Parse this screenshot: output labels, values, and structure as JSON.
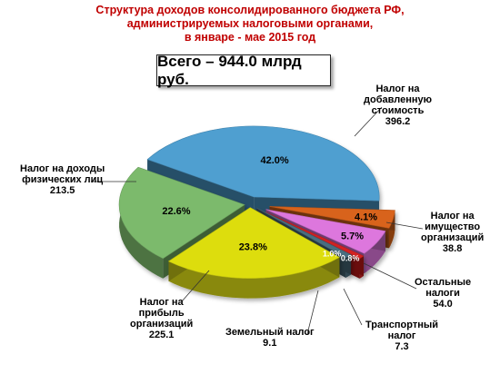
{
  "title_lines": [
    "Структура доходов консолидированного бюджета РФ,",
    "администрируемых налоговыми органами,",
    "в январе - мае 2015 год"
  ],
  "total": "Всего – 944.0 млрд руб.",
  "chart_data": {
    "type": "pie",
    "unit": "млрд руб.",
    "slices": [
      {
        "label_lines": [
          "Налог на",
          "добавленную",
          "стоимость"
        ],
        "value": 396.2,
        "value_text": "396.2",
        "percent_text": "42.0%",
        "color": "#4f9fd0"
      },
      {
        "label_lines": [
          "Налог на",
          "имущество",
          "организаций"
        ],
        "value": 38.8,
        "value_text": "38.8",
        "percent_text": "4.1%",
        "color": "#d8641c"
      },
      {
        "label_lines": [
          "Остальные",
          "налоги"
        ],
        "value": 54.0,
        "value_text": "54.0",
        "percent_text": "5.7%",
        "color": "#dd77dd"
      },
      {
        "label_lines": [
          "Транспортный",
          "налог"
        ],
        "value": 7.3,
        "value_text": "7.3",
        "percent_text": "0.8%",
        "color": "#d42222"
      },
      {
        "label_lines": [
          "Земельный налог"
        ],
        "value": 9.1,
        "value_text": "9.1",
        "percent_text": "1.0%",
        "color": "#4a6e80"
      },
      {
        "label_lines": [
          "Налог на",
          "прибыль",
          "организаций"
        ],
        "value": 225.1,
        "value_text": "225.1",
        "percent_text": "23.8%",
        "color": "#dddd10"
      },
      {
        "label_lines": [
          "Налог на доходы",
          "физических лиц"
        ],
        "value": 213.5,
        "value_text": "213.5",
        "percent_text": "22.6%",
        "color": "#7cba6c"
      }
    ]
  }
}
